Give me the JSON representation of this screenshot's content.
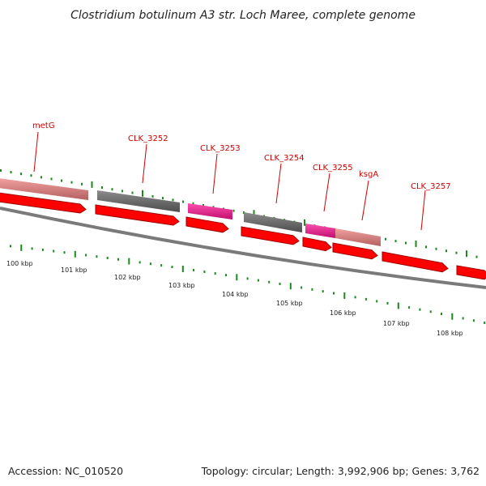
{
  "title": "Clostridium botulinum A3 str. Loch Maree, complete genome",
  "footer": {
    "accession": "Accession: NC_010520",
    "summary": "Topology: circular; Length: 3,992,906 bp; Genes: 3,762"
  },
  "colors": {
    "cds_red": "#ff0000",
    "cds_dark_red": "#a00000",
    "gene_salmon": "#ee8080",
    "gene_gray": "#666666",
    "gene_magenta": "#ff1493",
    "label_red": "#cc0000",
    "tick_green": "#1a8a1a",
    "backbone": "#808080"
  },
  "gene_labels": [
    {
      "id": "metG",
      "text": "metG"
    },
    {
      "id": "clk3252",
      "text": "CLK_3252"
    },
    {
      "id": "clk3253",
      "text": "CLK_3253"
    },
    {
      "id": "clk3254",
      "text": "CLK_3254"
    },
    {
      "id": "clk3255",
      "text": "CLK_3255"
    },
    {
      "id": "ksgA",
      "text": "ksgA"
    },
    {
      "id": "clk3257",
      "text": "CLK_3257"
    }
  ],
  "kbp_labels": [
    "100 kbp",
    "101 kbp",
    "102 kbp",
    "103 kbp",
    "104 kbp",
    "105 kbp",
    "106 kbp",
    "107 kbp",
    "108 kbp"
  ]
}
